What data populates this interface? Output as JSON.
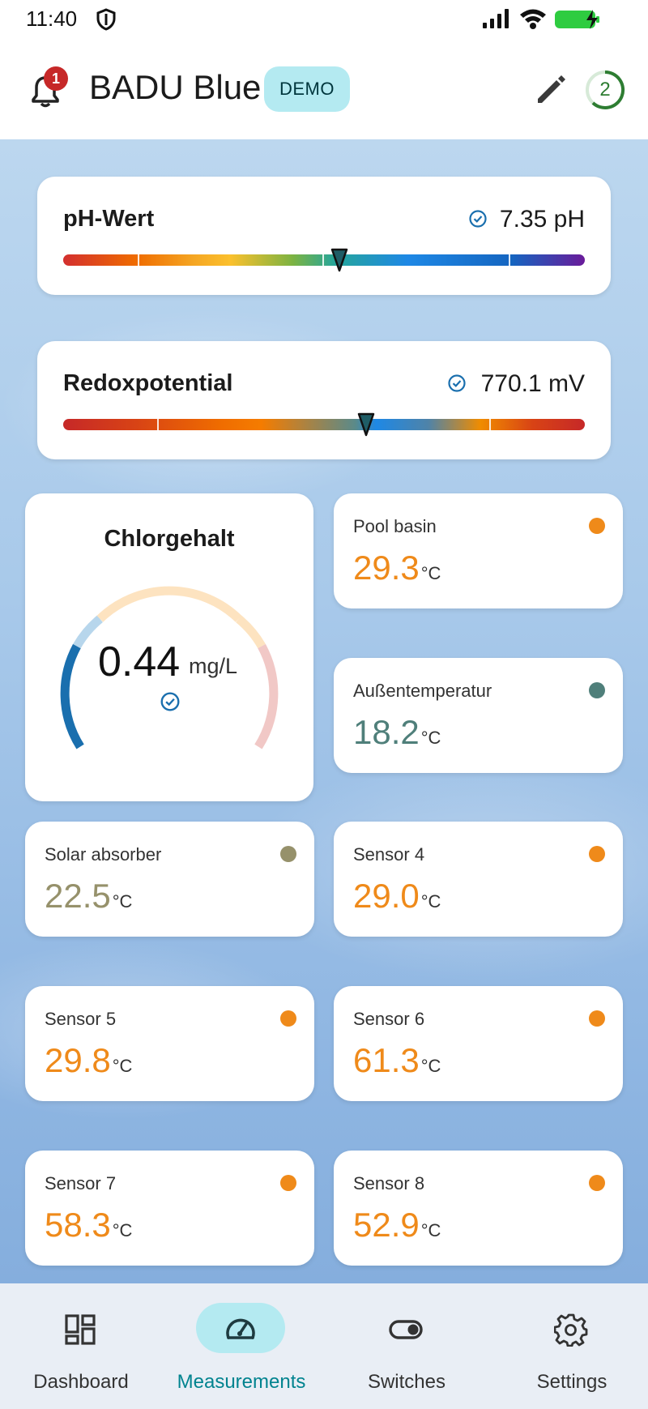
{
  "status_bar": {
    "time": "11:40"
  },
  "header": {
    "title": "BADU Blue",
    "demo_label": "DEMO",
    "notification_count": "1",
    "count": "2"
  },
  "ph": {
    "title": "pH-Wert",
    "value": "7.35 pH",
    "position": 0.53
  },
  "redox": {
    "title": "Redoxpotential",
    "value": "770.1 mV",
    "position": 0.58
  },
  "chlorine": {
    "title": "Chlorgehalt",
    "value": "0.44",
    "unit": "mg/L"
  },
  "temp_unit": "°C",
  "sensors": [
    {
      "label": "Pool basin",
      "value": "29.3",
      "color": "#ef8a1a"
    },
    {
      "label": "Außentemperatur",
      "value": "18.2",
      "color": "#4f7f7a"
    },
    {
      "label": "Solar absorber",
      "value": "22.5",
      "color": "#96916b"
    },
    {
      "label": "Sensor 4",
      "value": "29.0",
      "color": "#ef8a1a"
    },
    {
      "label": "Sensor 5",
      "value": "29.8",
      "color": "#ef8a1a"
    },
    {
      "label": "Sensor 6",
      "value": "61.3",
      "color": "#ef8a1a"
    },
    {
      "label": "Sensor 7",
      "value": "58.3",
      "color": "#ef8a1a"
    },
    {
      "label": "Sensor 8",
      "value": "52.9",
      "color": "#ef8a1a"
    }
  ],
  "nav": {
    "items": [
      {
        "label": "Dashboard",
        "icon": "dashboard-icon"
      },
      {
        "label": "Measurements",
        "icon": "speedometer-icon"
      },
      {
        "label": "Switches",
        "icon": "toggle-icon"
      },
      {
        "label": "Settings",
        "icon": "gear-icon"
      }
    ],
    "active": 1
  },
  "colors": {
    "accent": "#00838f",
    "active_pill": "#b4eaf1",
    "check": "#1a6fae",
    "orange": "#ef8a1a"
  }
}
